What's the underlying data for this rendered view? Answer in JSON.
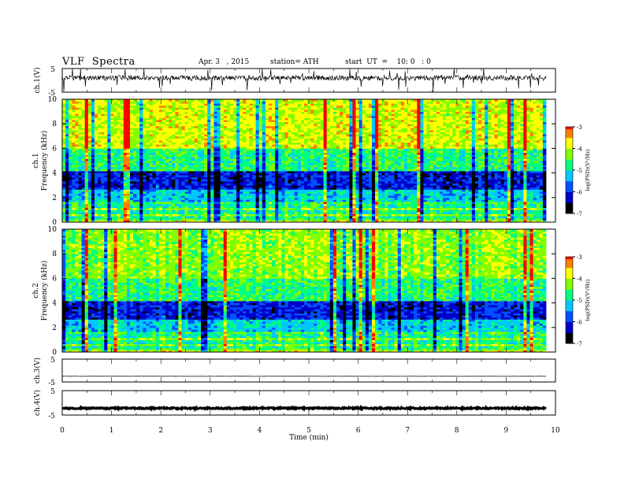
{
  "header": {
    "title": "VLF  Spectra",
    "date": "Apr. 3   , 2015",
    "station": "station= ATH",
    "start": "start  UT  =    10: 0   : 0"
  },
  "colors": {
    "colormap": [
      "#000000",
      "#0000c8",
      "#0050ff",
      "#00c8ff",
      "#00ff80",
      "#80ff00",
      "#ffff00",
      "#ff8000",
      "#ff0000",
      "#ffffff"
    ]
  },
  "chart_data": [
    {
      "type": "line",
      "name": "ch1-waveform",
      "ylabel": "ch.1(V)",
      "ylim": [
        -5,
        5
      ],
      "yticks": [
        "5",
        "-5"
      ],
      "xlim": [
        0,
        10
      ]
    },
    {
      "type": "heatmap",
      "name": "ch1-spectrogram",
      "ylabel": "Frequency  (kHz)",
      "channel_label": "ch.1",
      "ylim": [
        0,
        10
      ],
      "yticks": [
        "0",
        "2",
        "4",
        "6",
        "8",
        "10"
      ],
      "xlim": [
        0,
        10
      ],
      "colorbar": {
        "label": "log(PSD)(V²/Hz)",
        "range": [
          -7,
          -3
        ],
        "ticks": [
          "-3",
          "-4",
          "-5",
          "-6",
          "-7"
        ]
      }
    },
    {
      "type": "heatmap",
      "name": "ch2-spectrogram",
      "ylabel": "Frequency  (kHz)",
      "channel_label": "ch.2",
      "ylim": [
        0,
        10
      ],
      "yticks": [
        "0",
        "2",
        "4",
        "6",
        "8",
        "10"
      ],
      "xlim": [
        0,
        10
      ],
      "colorbar": {
        "label": "log(PSD)(V²/Hz)",
        "range": [
          -7,
          -3
        ],
        "ticks": [
          "-3",
          "-4",
          "-5",
          "-6",
          "-7"
        ]
      }
    },
    {
      "type": "line",
      "name": "ch3-waveform",
      "ylabel": "ch.3(V)",
      "ylim": [
        -5,
        5
      ],
      "yticks": [
        "5",
        "-5"
      ],
      "xlim": [
        0,
        10
      ]
    },
    {
      "type": "line",
      "name": "ch4-waveform",
      "ylabel": "ch.4(V)",
      "ylim": [
        -5,
        5
      ],
      "yticks": [
        "5",
        "-5"
      ],
      "xlim": [
        0,
        10
      ],
      "xlabel": "Time  (min)",
      "xticks": [
        "0",
        "1",
        "2",
        "3",
        "4",
        "5",
        "6",
        "7",
        "8",
        "9",
        "10"
      ]
    }
  ]
}
